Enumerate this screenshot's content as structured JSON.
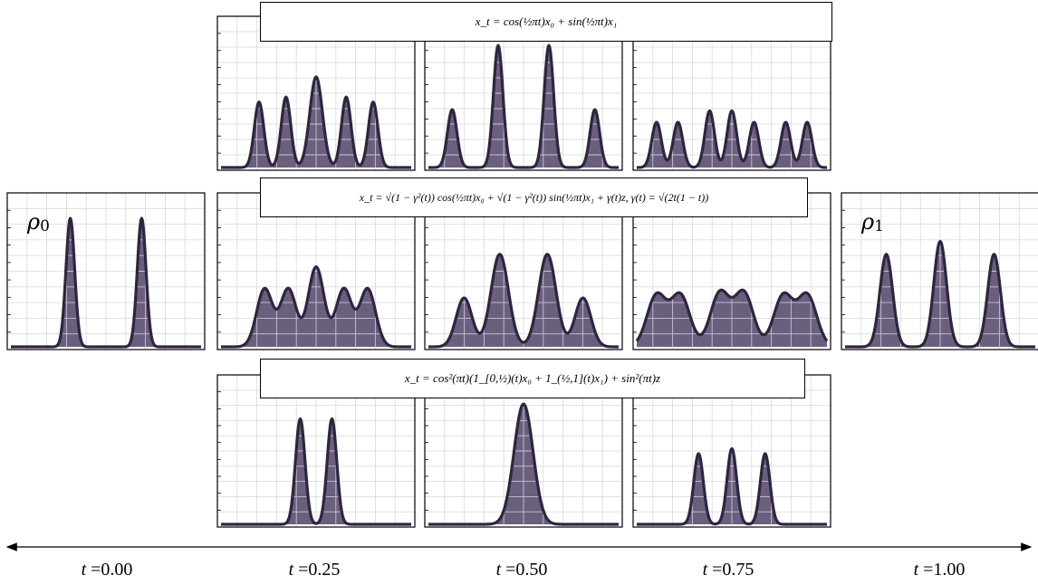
{
  "equations": {
    "top": "x_t = cos(½πt)x₀ + sin(½πt)x₁",
    "middle": "x_t = √(1 − γ²(t)) cos(½πt)x₀ + √(1 − γ²(t)) sin(½πt)x₁ + γ(t)z,      γ(t) = √(2t(1 − t))",
    "bottom": "x_t = cos²(πt)(1_[0,½)(t)x₀ + 1_(½,1](t)x₁) + sin²(πt)z"
  },
  "endpoint_labels": {
    "rho0": "ρ0",
    "rho1": "ρ1"
  },
  "time_labels": [
    {
      "var": "t",
      "value": "=0.00"
    },
    {
      "var": "t",
      "value": "=0.25"
    },
    {
      "var": "t",
      "value": "=0.50"
    },
    {
      "var": "t",
      "value": "=0.75"
    },
    {
      "var": "t",
      "value": "=1.00"
    }
  ],
  "colors": {
    "line": "#2e2540",
    "fill": "#6b5f7e",
    "grid": "#d9d9d9",
    "frame": "#000000"
  },
  "chart_data": {
    "type": "area",
    "grid": true,
    "xlim": [
      -1.2,
      1.2
    ],
    "ylim": [
      0,
      1
    ],
    "panels": [
      {
        "id": "rho0",
        "t": 0.0,
        "row": "middle",
        "peaks": [
          [
            -0.45,
            1.0,
            0.055
          ],
          [
            0.45,
            1.0,
            0.055
          ]
        ]
      },
      {
        "id": "top_t025",
        "t": 0.25,
        "row": "top",
        "peaks": [
          [
            -0.72,
            0.52,
            0.06
          ],
          [
            -0.38,
            0.56,
            0.06
          ],
          [
            0.0,
            0.72,
            0.08
          ],
          [
            0.38,
            0.56,
            0.06
          ],
          [
            0.72,
            0.52,
            0.06
          ]
        ]
      },
      {
        "id": "top_t050",
        "t": 0.5,
        "row": "top",
        "peaks": [
          [
            -0.9,
            0.46,
            0.06
          ],
          [
            -0.32,
            0.97,
            0.06
          ],
          [
            0.32,
            0.97,
            0.06
          ],
          [
            0.9,
            0.46,
            0.06
          ]
        ]
      },
      {
        "id": "top_t075",
        "t": 0.75,
        "row": "top",
        "peaks": [
          [
            -0.95,
            0.36,
            0.06
          ],
          [
            -0.68,
            0.36,
            0.06
          ],
          [
            -0.28,
            0.45,
            0.06
          ],
          [
            0.0,
            0.45,
            0.06
          ],
          [
            0.28,
            0.36,
            0.06
          ],
          [
            0.68,
            0.36,
            0.06
          ],
          [
            0.95,
            0.36,
            0.06
          ]
        ]
      },
      {
        "id": "mid_t025",
        "t": 0.25,
        "row": "middle",
        "peaks": [
          [
            -0.65,
            0.45,
            0.1
          ],
          [
            -0.35,
            0.45,
            0.1
          ],
          [
            0.0,
            0.62,
            0.1
          ],
          [
            0.35,
            0.45,
            0.1
          ],
          [
            0.65,
            0.45,
            0.1
          ]
        ]
      },
      {
        "id": "mid_t050",
        "t": 0.5,
        "row": "middle",
        "peaks": [
          [
            -0.75,
            0.38,
            0.1
          ],
          [
            -0.3,
            0.72,
            0.11
          ],
          [
            0.3,
            0.72,
            0.11
          ],
          [
            0.75,
            0.38,
            0.1
          ]
        ]
      },
      {
        "id": "mid_t075",
        "t": 0.75,
        "row": "middle",
        "peaks": [
          [
            -0.95,
            0.4,
            0.12
          ],
          [
            -0.65,
            0.4,
            0.12
          ],
          [
            -0.15,
            0.42,
            0.12
          ],
          [
            0.15,
            0.42,
            0.12
          ],
          [
            0.65,
            0.4,
            0.12
          ],
          [
            0.95,
            0.4,
            0.12
          ]
        ]
      },
      {
        "id": "rho1",
        "t": 1.0,
        "row": "middle",
        "peaks": [
          [
            -0.68,
            0.72,
            0.08
          ],
          [
            0.0,
            0.82,
            0.08
          ],
          [
            0.68,
            0.72,
            0.08
          ]
        ]
      },
      {
        "id": "bot_t025",
        "t": 0.25,
        "row": "bottom",
        "peaks": [
          [
            -0.2,
            0.85,
            0.06
          ],
          [
            0.2,
            0.85,
            0.06
          ]
        ]
      },
      {
        "id": "bot_t050",
        "t": 0.5,
        "row": "bottom",
        "peaks": [
          [
            0.0,
            0.97,
            0.12
          ]
        ]
      },
      {
        "id": "bot_t075",
        "t": 0.75,
        "row": "bottom",
        "peaks": [
          [
            -0.42,
            0.57,
            0.06
          ],
          [
            0.0,
            0.61,
            0.06
          ],
          [
            0.42,
            0.57,
            0.06
          ]
        ]
      }
    ]
  }
}
